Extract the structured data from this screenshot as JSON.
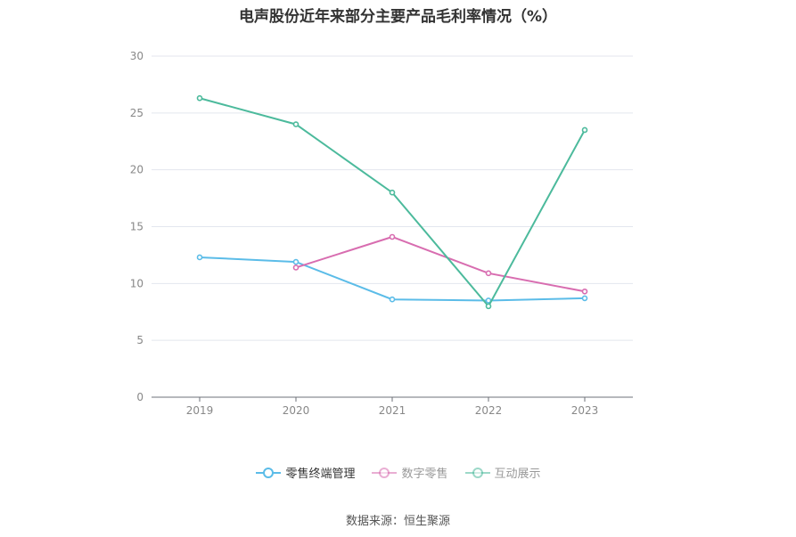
{
  "title": "电声股份近年来部分主要产品毛利率情况（%）",
  "source": "数据来源：恒生聚源",
  "chart_data": {
    "type": "line",
    "title": "电声股份近年来部分主要产品毛利率情况（%）",
    "x": [
      "2019",
      "2020",
      "2021",
      "2022",
      "2023"
    ],
    "ylim": [
      0,
      30
    ],
    "yticks": [
      0,
      5,
      10,
      15,
      20,
      25,
      30
    ],
    "grid": true,
    "legend": "bottom",
    "series": [
      {
        "name": "零售终端管理",
        "color": "#5bbce8",
        "values": [
          12.3,
          11.9,
          8.6,
          8.5,
          8.7
        ]
      },
      {
        "name": "数字零售",
        "color": "#d86db0",
        "values": [
          null,
          11.4,
          14.1,
          10.9,
          9.3
        ]
      },
      {
        "name": "互动展示",
        "color": "#4cba9c",
        "values": [
          26.3,
          24.0,
          18.0,
          8.0,
          23.5
        ]
      }
    ]
  }
}
